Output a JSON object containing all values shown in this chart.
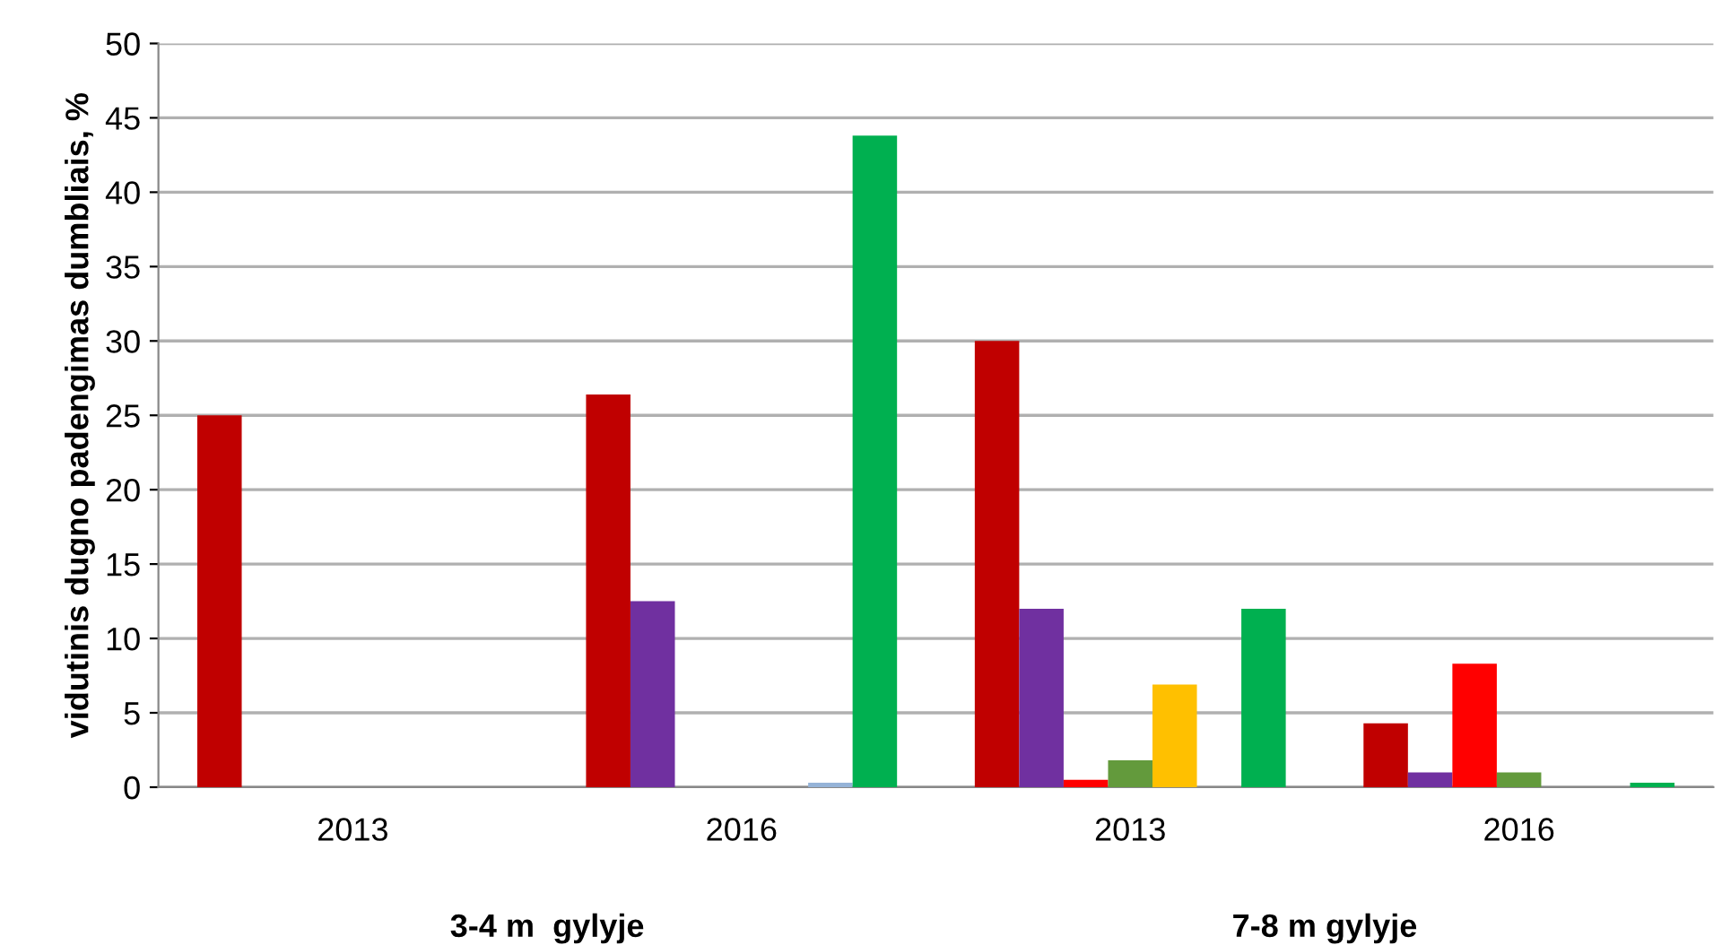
{
  "chart_data": {
    "type": "bar",
    "ylabel": "vidutinis dugno padengimas dumbliais, %",
    "categories": [
      "2013",
      "2016",
      "2013",
      "2016"
    ],
    "series": [
      {
        "color": "#c00000",
        "values": [
          25,
          26.4,
          30,
          4.3
        ]
      },
      {
        "color": "#7030a0",
        "values": [
          null,
          12.5,
          12,
          1.0
        ]
      },
      {
        "color": "#ff0000",
        "values": [
          null,
          null,
          0.5,
          8.3
        ]
      },
      {
        "color": "#639a3c",
        "values": [
          null,
          null,
          1.8,
          1.0
        ]
      },
      {
        "color": "#ffc000",
        "values": [
          null,
          null,
          6.9,
          null
        ]
      },
      {
        "color": "#95b3d7",
        "values": [
          null,
          0.3,
          null,
          null
        ]
      },
      {
        "color": "#00b050",
        "values": [
          null,
          43.8,
          12,
          0.3
        ]
      }
    ],
    "ylim": [
      0,
      50
    ],
    "yticks": [
      0,
      5,
      10,
      15,
      20,
      25,
      30,
      35,
      40,
      45,
      50
    ],
    "grid": "y",
    "annotations": [
      "3-4 m  gylyje",
      "7-8 m gylyje"
    ]
  }
}
